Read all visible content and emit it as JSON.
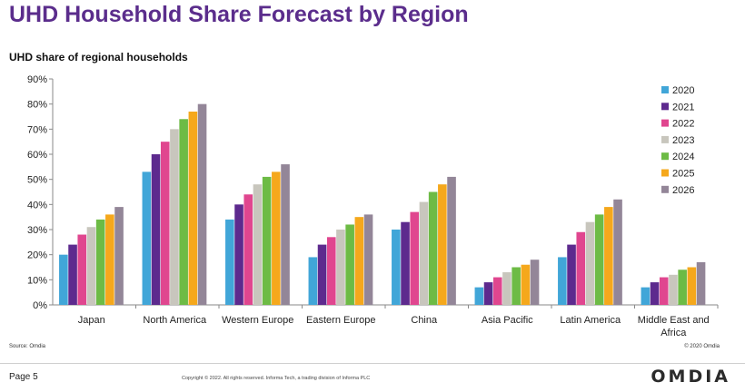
{
  "page": {
    "title": "UHD Household Share Forecast by Region",
    "source": "Source: Omdia",
    "copyright_right": "© 2020 Omdia",
    "page_number": "Page 5",
    "copyright": "Copyright © 2022. All rights reserved. Informa Tech, a trading division of Informa PLC",
    "logo_text": "OMDIA"
  },
  "chart_data": {
    "type": "bar",
    "title": "UHD share of regional households",
    "xlabel": "",
    "ylabel": "",
    "ylim": [
      0,
      90
    ],
    "yticks": [
      "0%",
      "10%",
      "20%",
      "30%",
      "40%",
      "50%",
      "60%",
      "70%",
      "80%",
      "90%"
    ],
    "grid": false,
    "legend_position": "right",
    "categories": [
      "Japan",
      "North America",
      "Western Europe",
      "Eastern Europe",
      "China",
      "Asia Pacific",
      "Latin America",
      "Middle East and Africa"
    ],
    "series": [
      {
        "name": "2020",
        "color": "#41a6d8",
        "values": [
          20,
          53,
          34,
          19,
          30,
          7,
          19,
          7
        ]
      },
      {
        "name": "2021",
        "color": "#5d2a8e",
        "values": [
          24,
          60,
          40,
          24,
          33,
          9,
          24,
          9
        ]
      },
      {
        "name": "2022",
        "color": "#e0468f",
        "values": [
          28,
          65,
          44,
          27,
          37,
          11,
          29,
          11
        ]
      },
      {
        "name": "2023",
        "color": "#c8c6bd",
        "values": [
          31,
          70,
          48,
          30,
          41,
          13,
          33,
          12
        ]
      },
      {
        "name": "2024",
        "color": "#6dbb45",
        "values": [
          34,
          74,
          51,
          32,
          45,
          15,
          36,
          14
        ]
      },
      {
        "name": "2025",
        "color": "#f5a81c",
        "values": [
          36,
          77,
          53,
          35,
          48,
          16,
          39,
          15
        ]
      },
      {
        "name": "2026",
        "color": "#938698",
        "values": [
          39,
          80,
          56,
          36,
          51,
          18,
          42,
          17
        ]
      }
    ]
  }
}
